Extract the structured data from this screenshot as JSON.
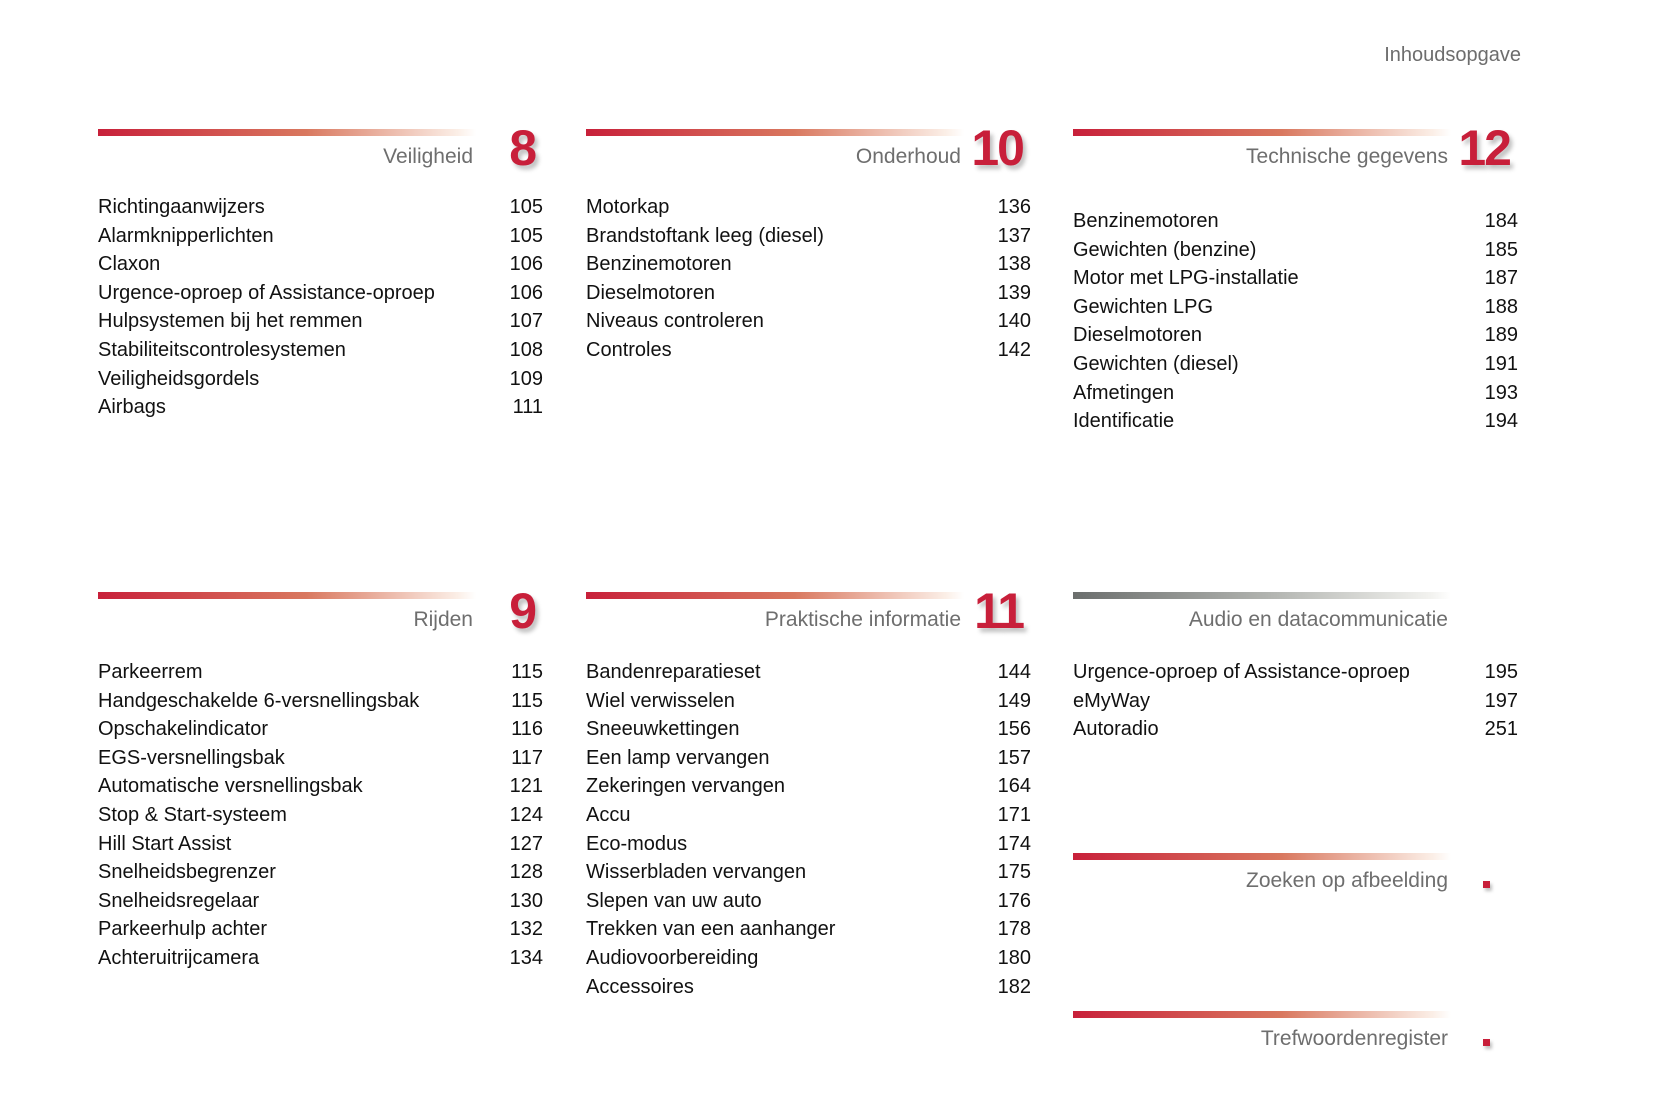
{
  "header": {
    "title": "Inhoudsopgave"
  },
  "sections": [
    {
      "number": "8",
      "title": "Veiligheid",
      "items": [
        {
          "label": "Richtingaanwijzers",
          "page": "105"
        },
        {
          "label": "Alarmknipperlichten",
          "page": "105"
        },
        {
          "label": "Claxon",
          "page": "106"
        },
        {
          "label": "Urgence-oproep of Assistance-oproep",
          "page": "106"
        },
        {
          "label": "Hulpsystemen bij het remmen",
          "page": "107"
        },
        {
          "label": "Stabiliteitscontrolesystemen",
          "page": "108"
        },
        {
          "label": "Veiligheidsgordels",
          "page": "109"
        },
        {
          "label": "Airbags",
          "page": "111"
        }
      ]
    },
    {
      "number": "10",
      "title": "Onderhoud",
      "items": [
        {
          "label": "Motorkap",
          "page": "136"
        },
        {
          "label": "Brandstoftank leeg (diesel)",
          "page": "137"
        },
        {
          "label": "Benzinemotoren",
          "page": "138"
        },
        {
          "label": "Dieselmotoren",
          "page": "139"
        },
        {
          "label": "Niveaus controleren",
          "page": "140"
        },
        {
          "label": "Controles",
          "page": "142"
        }
      ]
    },
    {
      "number": "12",
      "title": "Technische gegevens",
      "items": [
        {
          "label": "Benzinemotoren",
          "page": "184"
        },
        {
          "label": "Gewichten (benzine)",
          "page": "185"
        },
        {
          "label": "Motor met LPG-installatie",
          "page": "187"
        },
        {
          "label": "Gewichten LPG",
          "page": "188"
        },
        {
          "label": "Dieselmotoren",
          "page": "189"
        },
        {
          "label": "Gewichten (diesel)",
          "page": "191"
        },
        {
          "label": "Afmetingen",
          "page": "193"
        },
        {
          "label": "Identificatie",
          "page": "194"
        }
      ]
    },
    {
      "number": "9",
      "title": "Rijden",
      "items": [
        {
          "label": "Parkeerrem",
          "page": "115"
        },
        {
          "label": "Handgeschakelde 6-versnellingsbak",
          "page": "115"
        },
        {
          "label": "Opschakelindicator",
          "page": "116"
        },
        {
          "label": "EGS-versnellingsbak",
          "page": "117"
        },
        {
          "label": "Automatische versnellingsbak",
          "page": "121"
        },
        {
          "label": "Stop & Start-systeem",
          "page": "124"
        },
        {
          "label": "Hill Start Assist",
          "page": "127"
        },
        {
          "label": "Snelheidsbegrenzer",
          "page": "128"
        },
        {
          "label": "Snelheidsregelaar",
          "page": "130"
        },
        {
          "label": "Parkeerhulp achter",
          "page": "132"
        },
        {
          "label": "Achteruitrijcamera",
          "page": "134"
        }
      ]
    },
    {
      "number": "11",
      "title": "Praktische informatie",
      "items": [
        {
          "label": "Bandenreparatieset",
          "page": "144"
        },
        {
          "label": "Wiel verwisselen",
          "page": "149"
        },
        {
          "label": "Sneeuwkettingen",
          "page": "156"
        },
        {
          "label": "Een lamp vervangen",
          "page": "157"
        },
        {
          "label": "Zekeringen vervangen",
          "page": "164"
        },
        {
          "label": "Accu",
          "page": "171"
        },
        {
          "label": "Eco-modus",
          "page": "174"
        },
        {
          "label": "Wisserbladen vervangen",
          "page": "175"
        },
        {
          "label": "Slepen van uw auto",
          "page": "176"
        },
        {
          "label": "Trekken van een aanhanger",
          "page": "178"
        },
        {
          "label": "Audiovoorbereiding",
          "page": "180"
        },
        {
          "label": "Accessoires",
          "page": "182"
        }
      ]
    },
    {
      "number": "",
      "title": "Audio en datacommunicatie",
      "items": [
        {
          "label": "Urgence-oproep of Assistance-oproep",
          "page": "195"
        },
        {
          "label": "eMyWay",
          "page": "197"
        },
        {
          "label": "Autoradio",
          "page": "251"
        }
      ]
    },
    {
      "number": "",
      "title": "Zoeken op afbeelding",
      "items": []
    },
    {
      "number": "",
      "title": "Trefwoordenregister",
      "items": []
    }
  ],
  "colors": {
    "accent": "#c81f3a",
    "heading": "#6e6e6e",
    "audio_bar": "#6b6e6d"
  }
}
